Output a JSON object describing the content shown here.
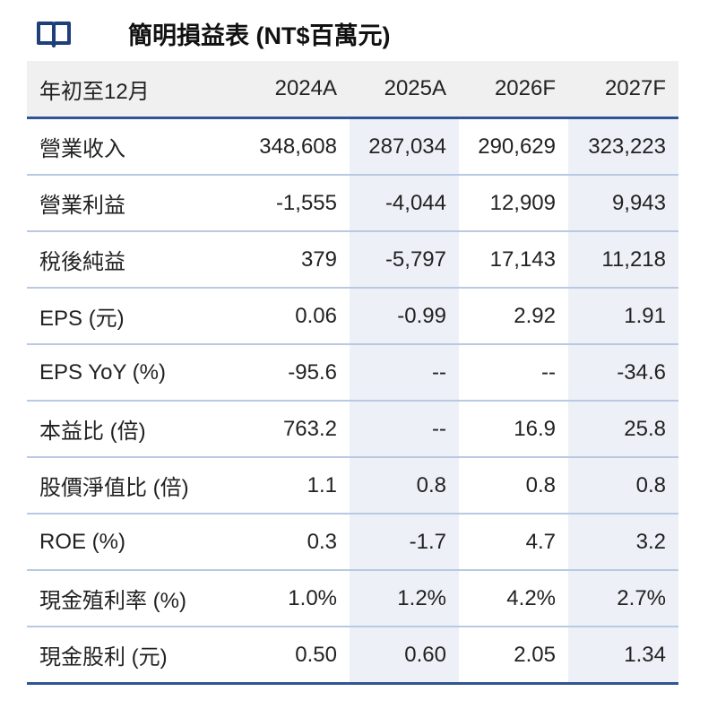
{
  "header": {
    "title": "簡明損益表 (NT$百萬元)"
  },
  "table": {
    "columns": [
      "年初至12月",
      "2024A",
      "2025A",
      "2026F",
      "2027F"
    ],
    "rows": [
      [
        "營業收入",
        "348,608",
        "287,034",
        "290,629",
        "323,223"
      ],
      [
        "營業利益",
        "-1,555",
        "-4,044",
        "12,909",
        "9,943"
      ],
      [
        "稅後純益",
        "379",
        "-5,797",
        "17,143",
        "11,218"
      ],
      [
        "EPS (元)",
        "0.06",
        "-0.99",
        "2.92",
        "1.91"
      ],
      [
        "EPS YoY (%)",
        "-95.6",
        "--",
        "--",
        "-34.6"
      ],
      [
        "本益比 (倍)",
        "763.2",
        "--",
        "16.9",
        "25.8"
      ],
      [
        "股價淨值比 (倍)",
        "1.1",
        "0.8",
        "0.8",
        "0.8"
      ],
      [
        "ROE (%)",
        "0.3",
        "-1.7",
        "4.7",
        "3.2"
      ],
      [
        "現金殖利率 (%)",
        "1.0%",
        "1.2%",
        "4.2%",
        "2.7%"
      ],
      [
        "現金股利 (元)",
        "0.50",
        "0.60",
        "2.05",
        "1.34"
      ]
    ]
  }
}
